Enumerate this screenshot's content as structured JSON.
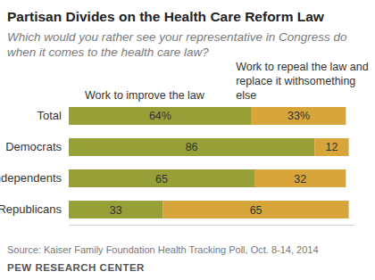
{
  "chart_data": {
    "type": "bar",
    "orientation": "horizontal",
    "stacked": true,
    "data_labels": true,
    "tick_labels": "y",
    "title": "Partisan Divides on the Health Care Reform Law",
    "subtitle": "Which would you rather see your representative in Congress do when it comes to the health care law?",
    "categories": [
      "Total",
      "Democrats",
      "Independents",
      "Republicans"
    ],
    "series": [
      {
        "name": "Work to improve the law",
        "color": "#979f37",
        "values": [
          64,
          86,
          65,
          33
        ],
        "value_labels": [
          "64%",
          "86",
          "65",
          "33"
        ]
      },
      {
        "name": "Work to repeal the law and replace it withsomething else",
        "color": "#d8a53b",
        "values": [
          33,
          12,
          32,
          65
        ],
        "value_labels": [
          "33%",
          "12",
          "32",
          "65"
        ]
      }
    ],
    "xlim": [
      0,
      100
    ],
    "annotations": [
      "Source: Kaiser Family Foundation Health Tracking Poll, Oct. 8-14, 2014",
      "PEW RESEARCH CENTER"
    ]
  }
}
